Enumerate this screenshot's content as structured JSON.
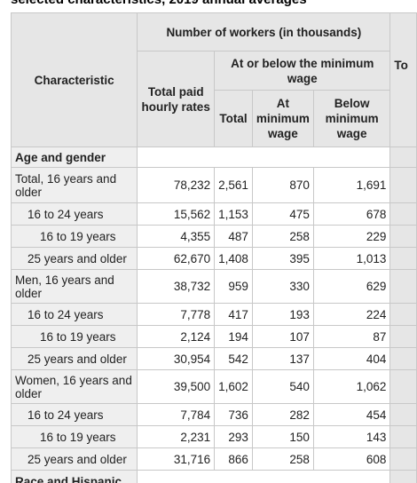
{
  "title": "selected characteristics, 2019 annual averages",
  "table": {
    "header": {
      "characteristic": "Characteristic",
      "group": "Number of workers (in thousands)",
      "total_paid": "Total paid hourly rates",
      "at_or_below": "At or below the minimum wage",
      "total": "Total",
      "at_min": "At minimum wage",
      "below_min": "Below minimum wage",
      "cut": "To"
    },
    "rows": [
      [
        "Age and gender"
      ],
      [
        "Total, 16 years and older",
        "78,232",
        "2,561",
        "870",
        "1,691"
      ],
      [
        "16 to 24 years",
        "15,562",
        "1,153",
        "475",
        "678"
      ],
      [
        "16 to 19 years",
        "4,355",
        "487",
        "258",
        "229"
      ],
      [
        "25 years and older",
        "62,670",
        "1,408",
        "395",
        "1,013"
      ],
      [
        "Men, 16 years and older",
        "38,732",
        "959",
        "330",
        "629"
      ],
      [
        "16 to 24 years",
        "7,778",
        "417",
        "193",
        "224"
      ],
      [
        "16 to 19 years",
        "2,124",
        "194",
        "107",
        "87"
      ],
      [
        "25 years and older",
        "30,954",
        "542",
        "137",
        "404"
      ],
      [
        "Women, 16 years and older",
        "39,500",
        "1,602",
        "540",
        "1,062"
      ],
      [
        "16 to 24 years",
        "7,784",
        "736",
        "282",
        "454"
      ],
      [
        "16 to 19 years",
        "2,231",
        "293",
        "150",
        "143"
      ],
      [
        "25 years and older",
        "31,716",
        "866",
        "258",
        "608"
      ],
      [
        "Race and Hispanic"
      ]
    ]
  }
}
